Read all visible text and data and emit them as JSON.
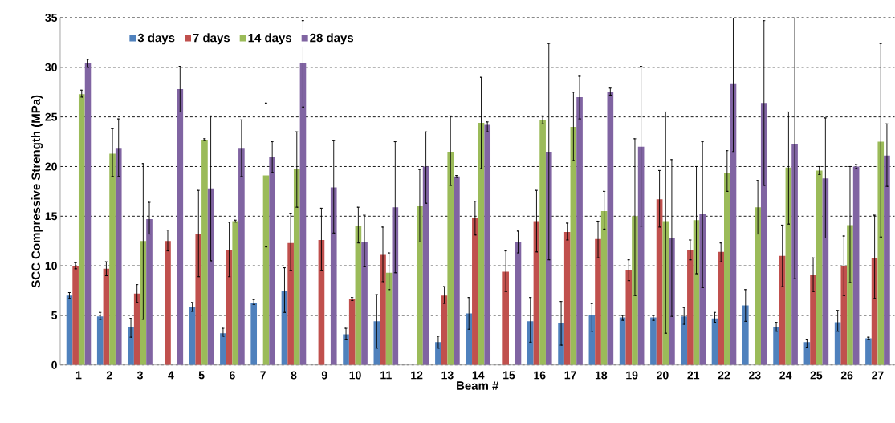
{
  "chart_data": {
    "type": "bar",
    "xlabel": "Beam #",
    "ylabel": "SCC Compressive Strength (MPa)",
    "categories": [
      "1",
      "2",
      "3",
      "4",
      "5",
      "6",
      "7",
      "8",
      "9",
      "10",
      "11",
      "12",
      "13",
      "14",
      "15",
      "16",
      "17",
      "18",
      "19",
      "20",
      "21",
      "22",
      "23",
      "24",
      "25",
      "26",
      "27"
    ],
    "series": [
      {
        "name": "3 days",
        "color": "#4f81bd",
        "values": [
          7.0,
          4.9,
          3.8,
          null,
          5.8,
          3.2,
          6.3,
          7.5,
          null,
          3.1,
          4.4,
          null,
          2.3,
          5.2,
          null,
          4.4,
          4.2,
          5.0,
          4.8,
          4.8,
          4.9,
          4.7,
          6.0,
          3.8,
          2.3,
          4.3,
          2.7
        ],
        "errors": [
          [
            6.7,
            7.3
          ],
          [
            4.6,
            5.3
          ],
          [
            2.8,
            4.7
          ],
          null,
          [
            5.4,
            6.3
          ],
          [
            2.9,
            3.7
          ],
          [
            6.1,
            6.6
          ],
          [
            5.3,
            9.8
          ],
          null,
          [
            2.6,
            3.7
          ],
          [
            1.7,
            7.1
          ],
          null,
          [
            1.7,
            2.9
          ],
          [
            3.6,
            6.8
          ],
          null,
          [
            2.3,
            6.8
          ],
          [
            2.0,
            6.4
          ],
          [
            3.4,
            6.2
          ],
          [
            4.5,
            5.0
          ],
          [
            4.5,
            5.0
          ],
          [
            4.1,
            5.8
          ],
          [
            4.3,
            5.3
          ],
          [
            4.4,
            7.6
          ],
          [
            3.4,
            4.3
          ],
          [
            1.8,
            2.6
          ],
          [
            3.4,
            5.5
          ],
          [
            2.6,
            2.8
          ]
        ]
      },
      {
        "name": "7 days",
        "color": "#c0504d",
        "values": [
          10.0,
          9.7,
          7.2,
          12.5,
          13.2,
          11.6,
          null,
          12.3,
          12.6,
          6.7,
          11.1,
          null,
          7.0,
          14.8,
          9.4,
          14.5,
          13.4,
          12.7,
          9.6,
          16.7,
          11.6,
          11.4,
          null,
          11.0,
          9.1,
          10.0,
          10.8
        ],
        "errors": [
          [
            9.7,
            10.3
          ],
          [
            9.0,
            10.4
          ],
          [
            6.3,
            8.1
          ],
          [
            11.5,
            13.6
          ],
          [
            8.9,
            17.6
          ],
          [
            8.9,
            14.4
          ],
          null,
          [
            9.5,
            15.3
          ],
          [
            9.5,
            15.8
          ],
          [
            6.5,
            6.8
          ],
          [
            8.4,
            13.9
          ],
          null,
          [
            6.2,
            7.9
          ],
          [
            13.1,
            16.5
          ],
          [
            7.4,
            11.5
          ],
          [
            11.4,
            17.6
          ],
          [
            12.6,
            14.3
          ],
          [
            10.8,
            14.5
          ],
          [
            8.5,
            10.6
          ],
          [
            13.9,
            19.6
          ],
          [
            10.6,
            12.6
          ],
          [
            10.4,
            12.3
          ],
          null,
          [
            7.9,
            14.1
          ],
          [
            7.4,
            10.8
          ],
          [
            7.0,
            13.0
          ],
          [
            6.7,
            15.1
          ]
        ]
      },
      {
        "name": "14 days",
        "color": "#9bbb59",
        "values": [
          27.3,
          21.3,
          12.5,
          null,
          22.7,
          14.5,
          19.1,
          19.8,
          null,
          14.0,
          9.3,
          16.0,
          21.5,
          24.4,
          null,
          24.7,
          24.0,
          15.5,
          15.0,
          14.5,
          14.6,
          19.4,
          15.9,
          19.9,
          19.6,
          14.1,
          22.5
        ],
        "errors": [
          [
            27.0,
            27.7
          ],
          [
            19.0,
            23.8
          ],
          [
            4.6,
            20.3
          ],
          null,
          [
            22.6,
            22.8
          ],
          [
            14.4,
            14.6
          ],
          [
            11.9,
            26.4
          ],
          [
            15.9,
            23.5
          ],
          null,
          [
            12.3,
            15.9
          ],
          [
            7.6,
            11.3
          ],
          [
            12.4,
            19.7
          ],
          [
            18.1,
            25.1
          ],
          [
            19.8,
            29.0
          ],
          null,
          [
            24.3,
            25.1
          ],
          [
            20.6,
            27.5
          ],
          [
            13.7,
            17.5
          ],
          [
            7.0,
            22.8
          ],
          [
            3.2,
            25.5
          ],
          [
            9.2,
            20.0
          ],
          [
            17.5,
            21.6
          ],
          [
            13.2,
            18.6
          ],
          [
            14.2,
            25.5
          ],
          [
            19.2,
            20.0
          ],
          [
            8.3,
            20.0
          ],
          [
            12.9,
            32.4
          ]
        ]
      },
      {
        "name": "28 days",
        "color": "#8064a2",
        "values": [
          30.4,
          21.8,
          14.7,
          27.8,
          17.8,
          21.8,
          21.0,
          30.4,
          17.9,
          12.4,
          15.9,
          20.0,
          19.0,
          24.2,
          12.4,
          21.5,
          27.0,
          27.5,
          22.0,
          12.8,
          15.2,
          28.3,
          26.4,
          22.3,
          18.8,
          20.0,
          21.1
        ],
        "errors": [
          [
            30.0,
            30.8
          ],
          [
            19.0,
            24.8
          ],
          [
            13.2,
            16.4
          ],
          [
            25.5,
            30.1
          ],
          [
            10.5,
            25.1
          ],
          [
            19.0,
            24.7
          ],
          [
            19.4,
            22.5
          ],
          [
            26.0,
            34.7
          ],
          [
            13.3,
            22.6
          ],
          [
            9.9,
            15.1
          ],
          [
            9.3,
            22.5
          ],
          [
            16.3,
            23.5
          ],
          [
            18.9,
            19.1
          ],
          [
            23.5,
            24.5
          ],
          [
            11.3,
            13.5
          ],
          [
            10.6,
            32.4
          ],
          [
            24.8,
            29.1
          ],
          [
            27.2,
            27.9
          ],
          [
            14.0,
            30.1
          ],
          [
            4.9,
            20.7
          ],
          [
            7.8,
            22.5
          ],
          [
            21.5,
            35
          ],
          [
            18.1,
            34.7
          ],
          [
            8.7,
            35
          ],
          [
            12.8,
            24.9
          ],
          [
            19.8,
            20.2
          ],
          [
            18.0,
            24.3
          ]
        ]
      }
    ],
    "ylim": [
      0,
      35
    ],
    "yticks": [
      0,
      5,
      10,
      15,
      20,
      25,
      30,
      35
    ],
    "grid": "y",
    "legend": "top left"
  }
}
